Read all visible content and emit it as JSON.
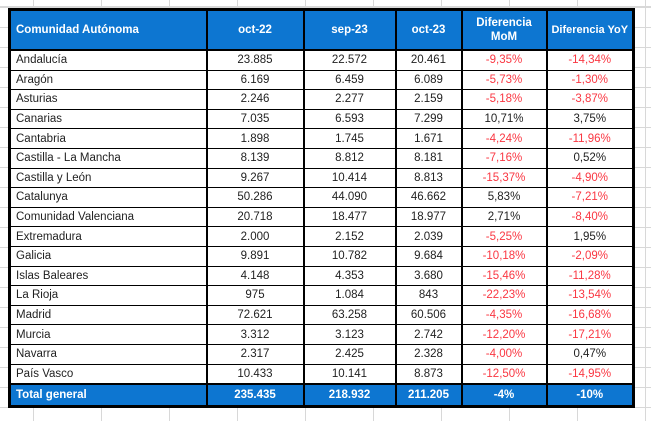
{
  "colors": {
    "header_bg": "#0d76d1",
    "negative_value": "#fa3742",
    "positive_value": "#1f1f1f",
    "border": "#000000",
    "header_text": "#ffffff"
  },
  "table": {
    "columns": [
      "Comunidad Autónoma",
      "oct-22",
      "sep-23",
      "oct-23",
      "Diferencia MoM",
      "Diferencia YoY"
    ],
    "rows": [
      {
        "name": "Andalucía",
        "oct22": "23.885",
        "sep23": "22.572",
        "oct23": "20.461",
        "mom": "-9,35%",
        "yoy": "-14,34%"
      },
      {
        "name": "Aragón",
        "oct22": "6.169",
        "sep23": "6.459",
        "oct23": "6.089",
        "mom": "-5,73%",
        "yoy": "-1,30%"
      },
      {
        "name": "Asturias",
        "oct22": "2.246",
        "sep23": "2.277",
        "oct23": "2.159",
        "mom": "-5,18%",
        "yoy": "-3,87%"
      },
      {
        "name": "Canarias",
        "oct22": "7.035",
        "sep23": "6.593",
        "oct23": "7.299",
        "mom": "10,71%",
        "yoy": "3,75%"
      },
      {
        "name": "Cantabria",
        "oct22": "1.898",
        "sep23": "1.745",
        "oct23": "1.671",
        "mom": "-4,24%",
        "yoy": "-11,96%"
      },
      {
        "name": "Castilla - La Mancha",
        "oct22": "8.139",
        "sep23": "8.812",
        "oct23": "8.181",
        "mom": "-7,16%",
        "yoy": "0,52%"
      },
      {
        "name": "Castilla y León",
        "oct22": "9.267",
        "sep23": "10.414",
        "oct23": "8.813",
        "mom": "-15,37%",
        "yoy": "-4,90%"
      },
      {
        "name": "Catalunya",
        "oct22": "50.286",
        "sep23": "44.090",
        "oct23": "46.662",
        "mom": "5,83%",
        "yoy": "-7,21%"
      },
      {
        "name": "Comunidad Valenciana",
        "oct22": "20.718",
        "sep23": "18.477",
        "oct23": "18.977",
        "mom": "2,71%",
        "yoy": "-8,40%"
      },
      {
        "name": "Extremadura",
        "oct22": "2.000",
        "sep23": "2.152",
        "oct23": "2.039",
        "mom": "-5,25%",
        "yoy": "1,95%"
      },
      {
        "name": "Galicia",
        "oct22": "9.891",
        "sep23": "10.782",
        "oct23": "9.684",
        "mom": "-10,18%",
        "yoy": "-2,09%"
      },
      {
        "name": "Islas Baleares",
        "oct22": "4.148",
        "sep23": "4.353",
        "oct23": "3.680",
        "mom": "-15,46%",
        "yoy": "-11,28%"
      },
      {
        "name": "La Rioja",
        "oct22": "975",
        "sep23": "1.084",
        "oct23": "843",
        "mom": "-22,23%",
        "yoy": "-13,54%"
      },
      {
        "name": "Madrid",
        "oct22": "72.621",
        "sep23": "63.258",
        "oct23": "60.506",
        "mom": "-4,35%",
        "yoy": "-16,68%"
      },
      {
        "name": "Murcia",
        "oct22": "3.312",
        "sep23": "3.123",
        "oct23": "2.742",
        "mom": "-12,20%",
        "yoy": "-17,21%"
      },
      {
        "name": "Navarra",
        "oct22": "2.317",
        "sep23": "2.425",
        "oct23": "2.328",
        "mom": "-4,00%",
        "yoy": "0,47%"
      },
      {
        "name": "País Vasco",
        "oct22": "10.433",
        "sep23": "10.141",
        "oct23": "8.873",
        "mom": "-12,50%",
        "yoy": "-14,95%"
      }
    ],
    "total": {
      "name": "Total general",
      "oct22": "235.435",
      "sep23": "218.932",
      "oct23": "211.205",
      "mom": "-4%",
      "yoy": "-10%"
    }
  }
}
